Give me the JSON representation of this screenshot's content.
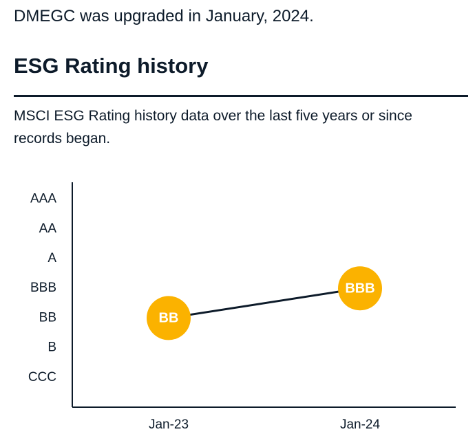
{
  "intro": "DMEGC was upgraded in January, 2024.",
  "heading": "ESG Rating history",
  "description": "MSCI ESG Rating history data over the last five years or since records began.",
  "chart_data": {
    "type": "line",
    "categories": [
      "Jan-23",
      "Jan-24"
    ],
    "values": [
      3,
      4
    ],
    "value_labels": [
      "BB",
      "BBB"
    ],
    "color": "#0d1b2a",
    "marker_color": "#fbb200",
    "ylim": [
      0,
      7.5
    ],
    "yticks": [
      {
        "value": 7,
        "label": "AAA"
      },
      {
        "value": 6,
        "label": "AA"
      },
      {
        "value": 5,
        "label": "A"
      },
      {
        "value": 4,
        "label": "BBB"
      },
      {
        "value": 3,
        "label": "BB"
      },
      {
        "value": 2,
        "label": "B"
      },
      {
        "value": 1,
        "label": "CCC"
      }
    ],
    "grid": false
  }
}
